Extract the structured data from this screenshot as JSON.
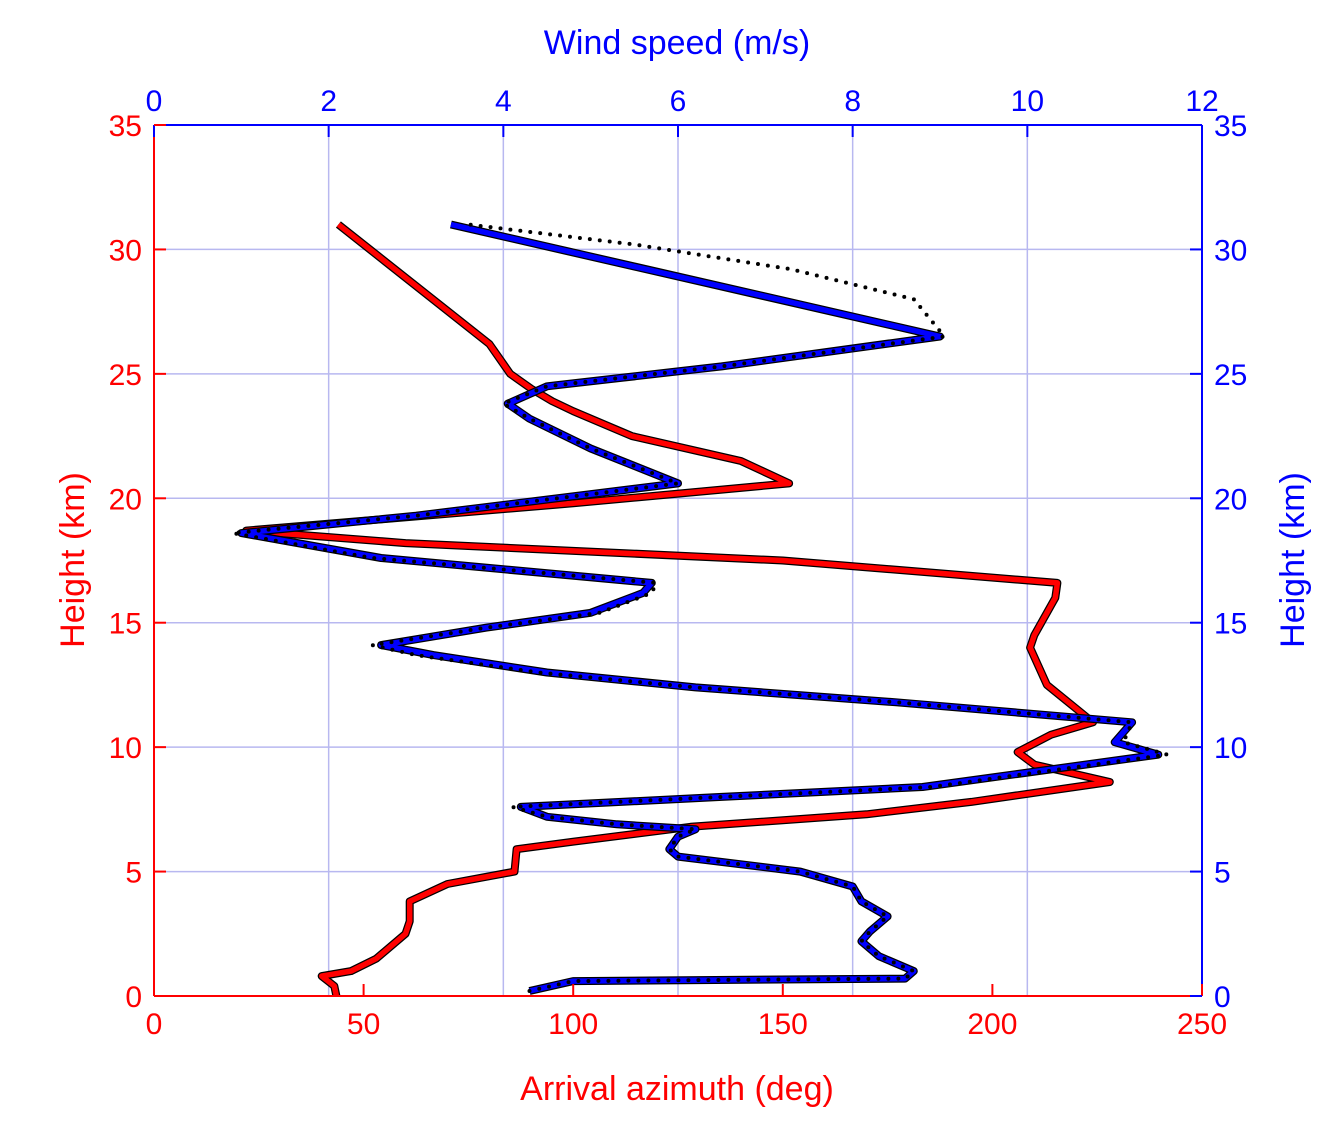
{
  "chart_data": {
    "type": "line",
    "title": "",
    "colors": {
      "azimuth": "#ff0000",
      "wind": "#0000ff",
      "fit": "#000000",
      "grid": "#b8b8f0"
    },
    "axes": {
      "bottom": {
        "label": "Arrival azimuth (deg)",
        "lim": [
          0,
          250
        ],
        "ticks": [
          0,
          50,
          100,
          150,
          200,
          250
        ],
        "color": "#ff0000"
      },
      "top": {
        "label": "Wind speed (m/s)",
        "lim": [
          0,
          12
        ],
        "ticks": [
          0,
          2,
          4,
          6,
          8,
          10,
          12
        ],
        "color": "#0000ff"
      },
      "left": {
        "label": "Height (km)",
        "lim": [
          0,
          35
        ],
        "ticks": [
          0,
          5,
          10,
          15,
          20,
          25,
          30,
          35
        ],
        "color": "#ff0000"
      },
      "right": {
        "label": "Height (km)",
        "lim": [
          0,
          35
        ],
        "ticks": [
          0,
          5,
          10,
          15,
          20,
          25,
          30,
          35
        ],
        "color": "#0000ff"
      }
    },
    "grid": true,
    "series": [
      {
        "name": "Arrival azimuth",
        "axis": "bottom",
        "color": "#ff0000",
        "points": [
          [
            43.5,
            0
          ],
          [
            43,
            0.4
          ],
          [
            40,
            0.8
          ],
          [
            47,
            1.0
          ],
          [
            53,
            1.5
          ],
          [
            60,
            2.5
          ],
          [
            61,
            3.0
          ],
          [
            61,
            3.8
          ],
          [
            70,
            4.5
          ],
          [
            86,
            5.0
          ],
          [
            86.5,
            5.9
          ],
          [
            100,
            6.2
          ],
          [
            128,
            6.8
          ],
          [
            170,
            7.3
          ],
          [
            195,
            7.8
          ],
          [
            228,
            8.6
          ],
          [
            210,
            9.3
          ],
          [
            206,
            9.8
          ],
          [
            214,
            10.5
          ],
          [
            224,
            11.0
          ],
          [
            213,
            12.5
          ],
          [
            209,
            14.0
          ],
          [
            210,
            14.5
          ],
          [
            215,
            16.0
          ],
          [
            215.5,
            16.6
          ],
          [
            150,
            17.5
          ],
          [
            60,
            18.2
          ],
          [
            22,
            18.7
          ],
          [
            100,
            19.8
          ],
          [
            151.5,
            20.6
          ],
          [
            140,
            21.5
          ],
          [
            114,
            22.5
          ],
          [
            100,
            23.5
          ],
          [
            95,
            23.9
          ],
          [
            90,
            24.4
          ],
          [
            85,
            25.0
          ],
          [
            80,
            26.2
          ],
          [
            44,
            31.0
          ]
        ]
      },
      {
        "name": "Wind speed",
        "axis": "top",
        "color": "#0000ff",
        "points": [
          [
            4.3,
            0.2
          ],
          [
            4.8,
            0.6
          ],
          [
            8.6,
            0.7
          ],
          [
            8.7,
            1.0
          ],
          [
            8.3,
            1.6
          ],
          [
            8.1,
            2.2
          ],
          [
            8.2,
            2.6
          ],
          [
            8.4,
            3.2
          ],
          [
            8.1,
            3.8
          ],
          [
            8.0,
            4.4
          ],
          [
            7.4,
            5.0
          ],
          [
            6.0,
            5.6
          ],
          [
            5.9,
            5.9
          ],
          [
            6.0,
            6.4
          ],
          [
            6.2,
            6.7
          ],
          [
            5.3,
            6.9
          ],
          [
            4.5,
            7.2
          ],
          [
            4.2,
            7.6
          ],
          [
            6.5,
            8.0
          ],
          [
            8.8,
            8.4
          ],
          [
            11.5,
            9.7
          ],
          [
            11.0,
            10.2
          ],
          [
            11.2,
            11.0
          ],
          [
            8.5,
            11.8
          ],
          [
            6.2,
            12.4
          ],
          [
            4.5,
            13.0
          ],
          [
            3.2,
            13.7
          ],
          [
            2.6,
            14.1
          ],
          [
            3.8,
            14.8
          ],
          [
            5.0,
            15.4
          ],
          [
            5.6,
            16.2
          ],
          [
            5.7,
            16.6
          ],
          [
            2.6,
            17.6
          ],
          [
            1.0,
            18.6
          ],
          [
            3.0,
            19.3
          ],
          [
            6.0,
            20.6
          ],
          [
            5.5,
            21.3
          ],
          [
            5.0,
            22.0
          ],
          [
            4.3,
            23.2
          ],
          [
            4.05,
            23.8
          ],
          [
            4.5,
            24.5
          ],
          [
            6.5,
            25.3
          ],
          [
            9.0,
            26.5
          ],
          [
            3.4,
            31.0
          ]
        ]
      },
      {
        "name": "Wind speed fit",
        "axis": "top",
        "color": "#000000",
        "style": "dotted",
        "points": [
          [
            4.3,
            0.2
          ],
          [
            4.8,
            0.6
          ],
          [
            8.6,
            0.7
          ],
          [
            8.7,
            1.0
          ],
          [
            8.3,
            1.6
          ],
          [
            8.1,
            2.2
          ],
          [
            8.2,
            2.6
          ],
          [
            8.4,
            3.2
          ],
          [
            8.1,
            3.8
          ],
          [
            8.0,
            4.4
          ],
          [
            7.4,
            5.0
          ],
          [
            6.0,
            5.6
          ],
          [
            5.9,
            5.9
          ],
          [
            6.0,
            6.4
          ],
          [
            6.2,
            6.7
          ],
          [
            5.3,
            6.9
          ],
          [
            4.5,
            7.2
          ],
          [
            4.1,
            7.6
          ],
          [
            6.5,
            8.0
          ],
          [
            8.9,
            8.4
          ],
          [
            11.6,
            9.7
          ],
          [
            11.1,
            10.2
          ],
          [
            11.2,
            11.0
          ],
          [
            8.5,
            11.8
          ],
          [
            6.2,
            12.4
          ],
          [
            4.4,
            13.0
          ],
          [
            3.0,
            13.7
          ],
          [
            2.5,
            14.1
          ],
          [
            3.8,
            14.8
          ],
          [
            5.1,
            15.4
          ],
          [
            5.7,
            16.2
          ],
          [
            5.75,
            16.6
          ],
          [
            2.5,
            17.6
          ],
          [
            0.9,
            18.6
          ],
          [
            3.0,
            19.3
          ],
          [
            6.0,
            20.6
          ],
          [
            5.5,
            21.3
          ],
          [
            5.0,
            22.0
          ],
          [
            4.3,
            23.2
          ],
          [
            4.0,
            23.8
          ],
          [
            4.5,
            24.5
          ],
          [
            6.5,
            25.3
          ],
          [
            9.05,
            26.5
          ],
          [
            8.7,
            28.0
          ],
          [
            7.3,
            29.2
          ],
          [
            5.5,
            30.2
          ],
          [
            3.6,
            31.0
          ]
        ]
      }
    ]
  }
}
